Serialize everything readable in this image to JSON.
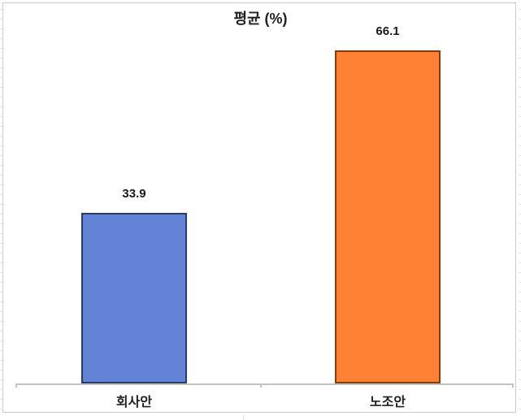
{
  "window": {
    "background": "#ffffff",
    "frame_border_color": "#cccccc"
  },
  "chart_data": {
    "type": "bar",
    "title": "평균 (%)",
    "categories": [
      "회사안",
      "노조안"
    ],
    "values": [
      33.9,
      66.1
    ],
    "value_labels": [
      "33.9",
      "66.1"
    ],
    "xlabel": "",
    "ylabel": "",
    "ylim": [
      0,
      70
    ],
    "grid": false,
    "legend": "none",
    "axis_color": "#c3c3c3",
    "bar_colors": [
      "#6384D6",
      "#FF8133"
    ],
    "bar_border_colors": [
      "#2A3C64",
      "#843C0C"
    ]
  },
  "bars": [
    {
      "category": "회사안",
      "value_label": "33.9"
    },
    {
      "category": "노조안",
      "value_label": "66.1"
    }
  ]
}
